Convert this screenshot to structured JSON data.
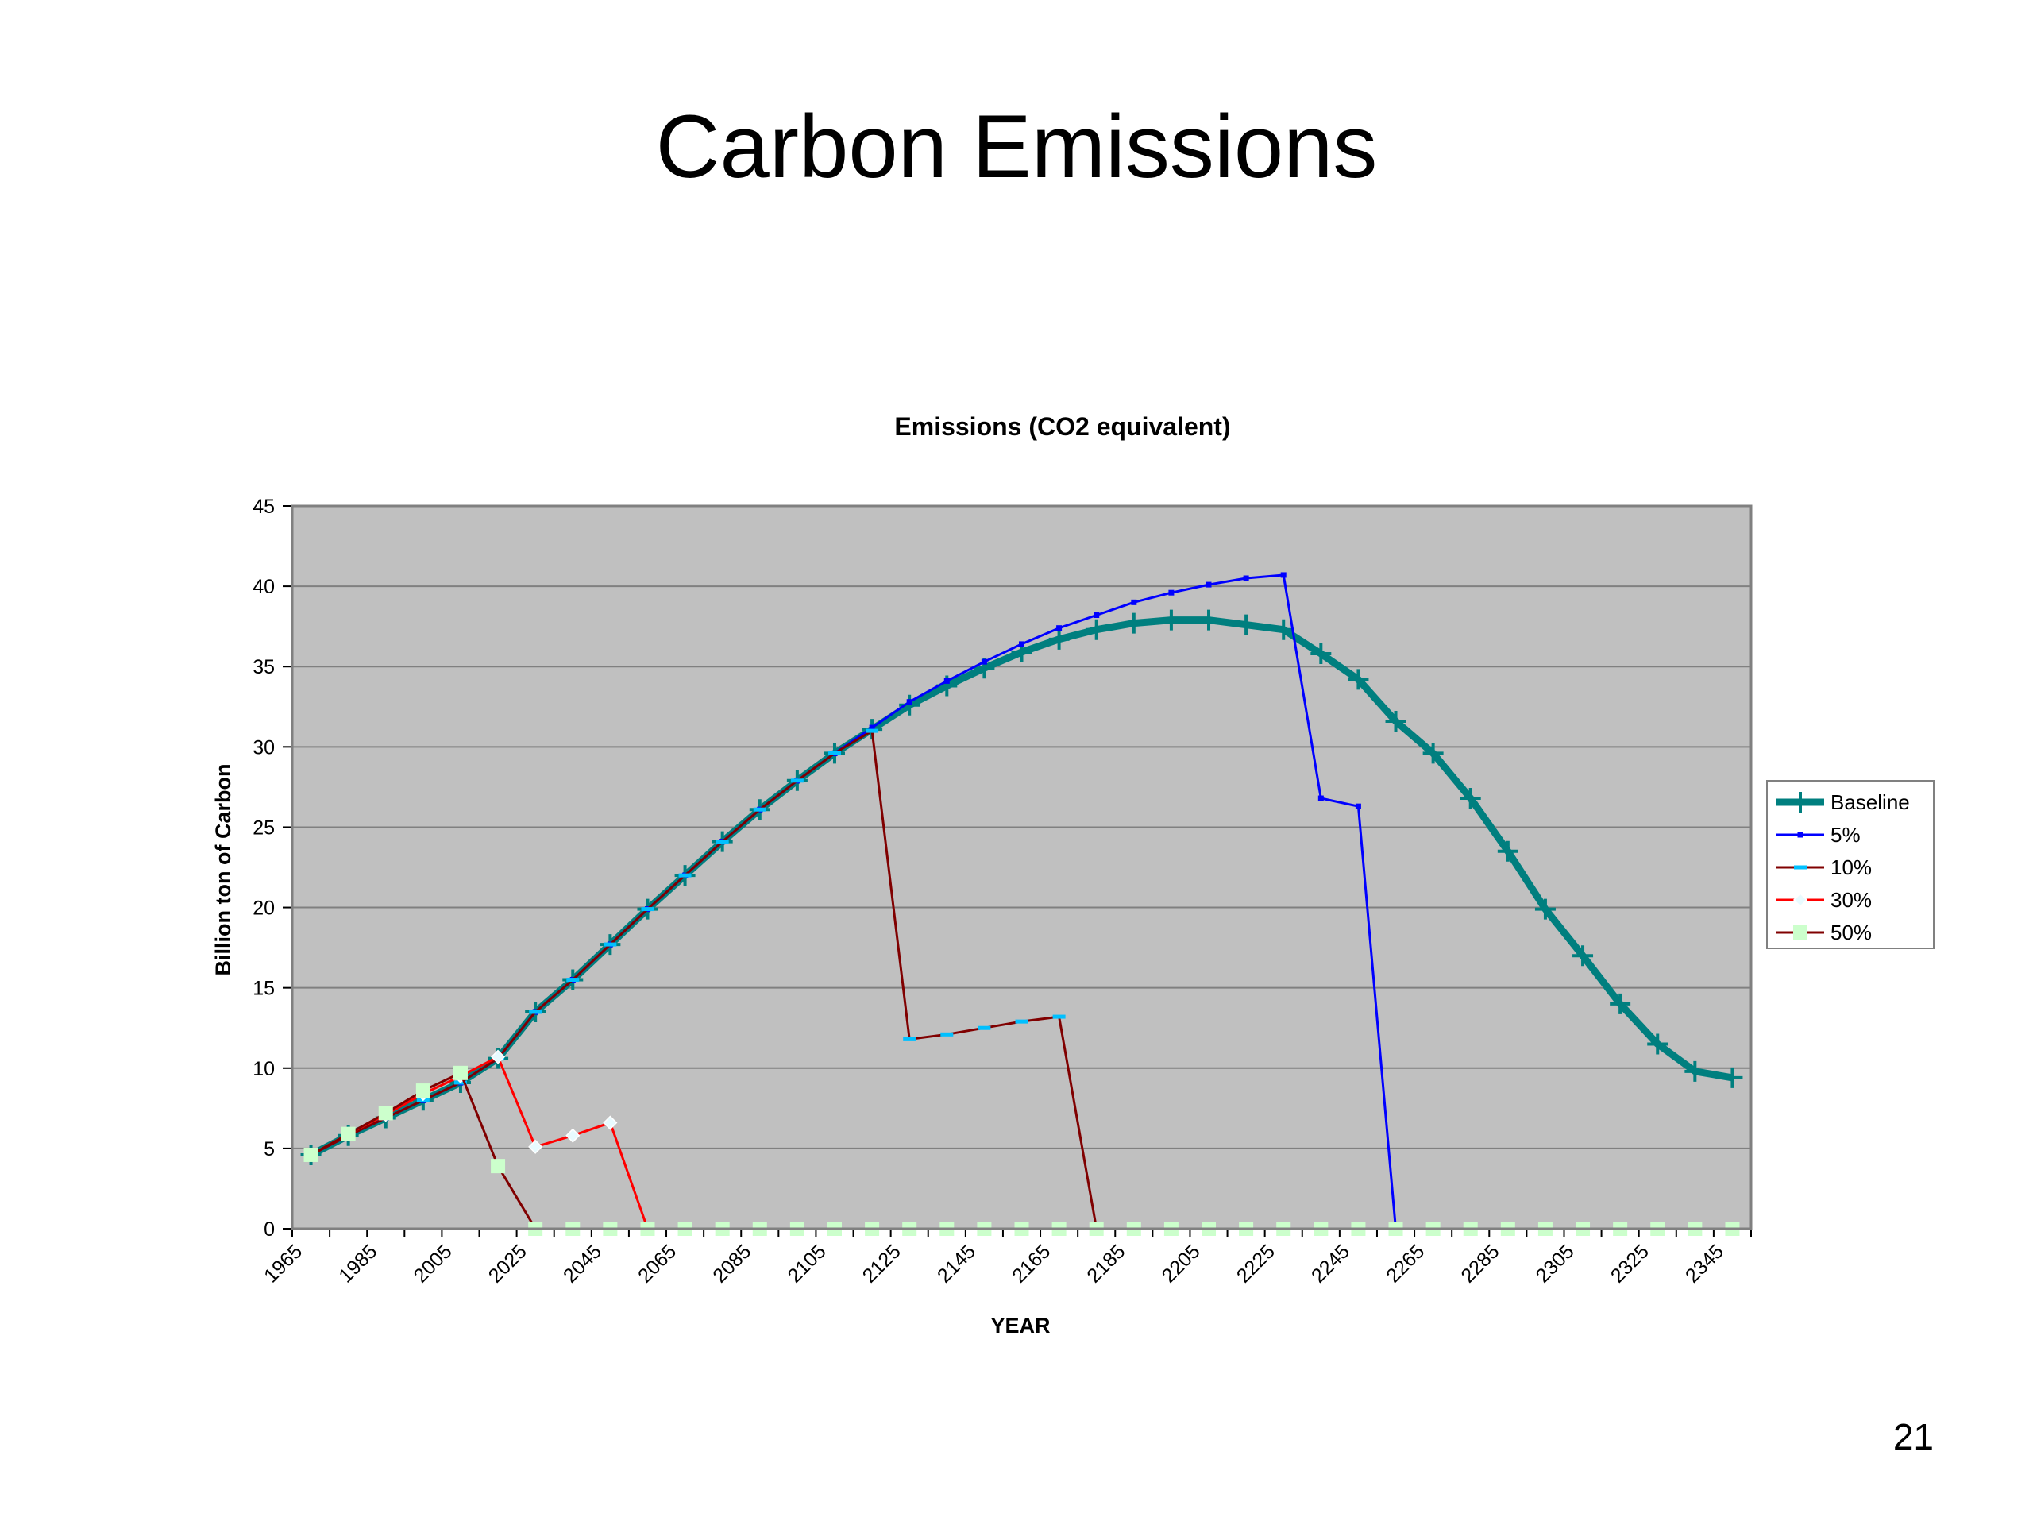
{
  "slide": {
    "title": "Carbon Emissions",
    "page_number": "21"
  },
  "chart_data": {
    "type": "line",
    "title": "Emissions (CO2 equivalent)",
    "xlabel": "YEAR",
    "ylabel": "Billion ton of Carbon",
    "ylim": [
      0,
      45
    ],
    "yticks": [
      0,
      5,
      10,
      15,
      20,
      25,
      30,
      35,
      40,
      45
    ],
    "xlim": [
      1965,
      2355
    ],
    "xticks": [
      1965,
      1985,
      2005,
      2025,
      2045,
      2065,
      2085,
      2105,
      2125,
      2145,
      2165,
      2185,
      2205,
      2225,
      2245,
      2265,
      2285,
      2305,
      2325,
      2345
    ],
    "grid": true,
    "legend_position": "right",
    "plot_background": "#c0c0c0",
    "series": [
      {
        "name": "Baseline",
        "color": "#007f7f",
        "marker": "plus",
        "points": [
          [
            1970,
            4.6
          ],
          [
            1980,
            5.8
          ],
          [
            1990,
            6.9
          ],
          [
            2000,
            8.0
          ],
          [
            2010,
            9.1
          ],
          [
            2020,
            10.6
          ],
          [
            2030,
            13.5
          ],
          [
            2040,
            15.5
          ],
          [
            2050,
            17.7
          ],
          [
            2060,
            19.9
          ],
          [
            2070,
            22.0
          ],
          [
            2080,
            24.1
          ],
          [
            2090,
            26.1
          ],
          [
            2100,
            27.9
          ],
          [
            2110,
            29.6
          ],
          [
            2120,
            31.1
          ],
          [
            2130,
            32.6
          ],
          [
            2140,
            33.8
          ],
          [
            2150,
            34.9
          ],
          [
            2160,
            35.9
          ],
          [
            2170,
            36.7
          ],
          [
            2180,
            37.3
          ],
          [
            2190,
            37.7
          ],
          [
            2200,
            37.9
          ],
          [
            2210,
            37.9
          ],
          [
            2220,
            37.6
          ],
          [
            2230,
            37.3
          ],
          [
            2240,
            35.8
          ],
          [
            2250,
            34.2
          ],
          [
            2260,
            31.6
          ],
          [
            2270,
            29.6
          ],
          [
            2280,
            26.8
          ],
          [
            2290,
            23.5
          ],
          [
            2300,
            19.9
          ],
          [
            2310,
            17.0
          ],
          [
            2320,
            14.0
          ],
          [
            2330,
            11.5
          ],
          [
            2340,
            9.8
          ],
          [
            2350,
            9.4
          ]
        ]
      },
      {
        "name": "5%",
        "color": "#0000ff",
        "marker": "dot",
        "points": [
          [
            1970,
            4.6
          ],
          [
            1980,
            5.8
          ],
          [
            1990,
            6.9
          ],
          [
            2000,
            8.0
          ],
          [
            2010,
            9.1
          ],
          [
            2020,
            10.6
          ],
          [
            2030,
            13.5
          ],
          [
            2040,
            15.5
          ],
          [
            2050,
            17.7
          ],
          [
            2060,
            19.9
          ],
          [
            2070,
            22.0
          ],
          [
            2080,
            24.1
          ],
          [
            2090,
            26.1
          ],
          [
            2100,
            27.9
          ],
          [
            2110,
            29.6
          ],
          [
            2120,
            31.2
          ],
          [
            2130,
            32.8
          ],
          [
            2140,
            34.1
          ],
          [
            2150,
            35.3
          ],
          [
            2160,
            36.4
          ],
          [
            2170,
            37.4
          ],
          [
            2180,
            38.2
          ],
          [
            2190,
            39.0
          ],
          [
            2200,
            39.6
          ],
          [
            2210,
            40.1
          ],
          [
            2220,
            40.5
          ],
          [
            2230,
            40.7
          ],
          [
            2240,
            26.8
          ],
          [
            2250,
            26.3
          ],
          [
            2260,
            0
          ]
        ]
      },
      {
        "name": "10%",
        "color": "#800000",
        "marker": "dash",
        "points": [
          [
            1970,
            4.6
          ],
          [
            1980,
            5.8
          ],
          [
            1990,
            6.9
          ],
          [
            2000,
            8.0
          ],
          [
            2010,
            9.1
          ],
          [
            2020,
            10.6
          ],
          [
            2030,
            13.5
          ],
          [
            2040,
            15.5
          ],
          [
            2050,
            17.7
          ],
          [
            2060,
            19.9
          ],
          [
            2070,
            22.0
          ],
          [
            2080,
            24.1
          ],
          [
            2090,
            26.1
          ],
          [
            2100,
            27.9
          ],
          [
            2110,
            29.6
          ],
          [
            2120,
            31.0
          ],
          [
            2130,
            11.8
          ],
          [
            2140,
            12.1
          ],
          [
            2150,
            12.5
          ],
          [
            2160,
            12.9
          ],
          [
            2170,
            13.2
          ],
          [
            2180,
            0
          ]
        ]
      },
      {
        "name": "30%",
        "color": "#ff0000",
        "marker": "diamond",
        "points": [
          [
            1970,
            4.6
          ],
          [
            1980,
            5.9
          ],
          [
            1990,
            7.1
          ],
          [
            2000,
            8.4
          ],
          [
            2010,
            9.5
          ],
          [
            2020,
            10.7
          ],
          [
            2030,
            5.1
          ],
          [
            2040,
            5.8
          ],
          [
            2050,
            6.6
          ],
          [
            2060,
            0
          ]
        ]
      },
      {
        "name": "50%",
        "color": "#800000",
        "marker": "square",
        "points": [
          [
            1970,
            4.6
          ],
          [
            1980,
            5.9
          ],
          [
            1990,
            7.2
          ],
          [
            2000,
            8.6
          ],
          [
            2010,
            9.7
          ],
          [
            2020,
            3.9
          ],
          [
            2030,
            0
          ],
          [
            2040,
            0
          ],
          [
            2050,
            0
          ],
          [
            2060,
            0
          ],
          [
            2070,
            0
          ],
          [
            2080,
            0
          ],
          [
            2090,
            0
          ],
          [
            2100,
            0
          ],
          [
            2110,
            0
          ],
          [
            2120,
            0
          ],
          [
            2130,
            0
          ],
          [
            2140,
            0
          ],
          [
            2150,
            0
          ],
          [
            2160,
            0
          ],
          [
            2170,
            0
          ],
          [
            2180,
            0
          ],
          [
            2190,
            0
          ],
          [
            2200,
            0
          ],
          [
            2210,
            0
          ],
          [
            2220,
            0
          ],
          [
            2230,
            0
          ],
          [
            2240,
            0
          ],
          [
            2250,
            0
          ],
          [
            2260,
            0
          ],
          [
            2270,
            0
          ],
          [
            2280,
            0
          ],
          [
            2290,
            0
          ],
          [
            2300,
            0
          ],
          [
            2310,
            0
          ],
          [
            2320,
            0
          ],
          [
            2330,
            0
          ],
          [
            2340,
            0
          ],
          [
            2350,
            0
          ]
        ]
      }
    ]
  }
}
